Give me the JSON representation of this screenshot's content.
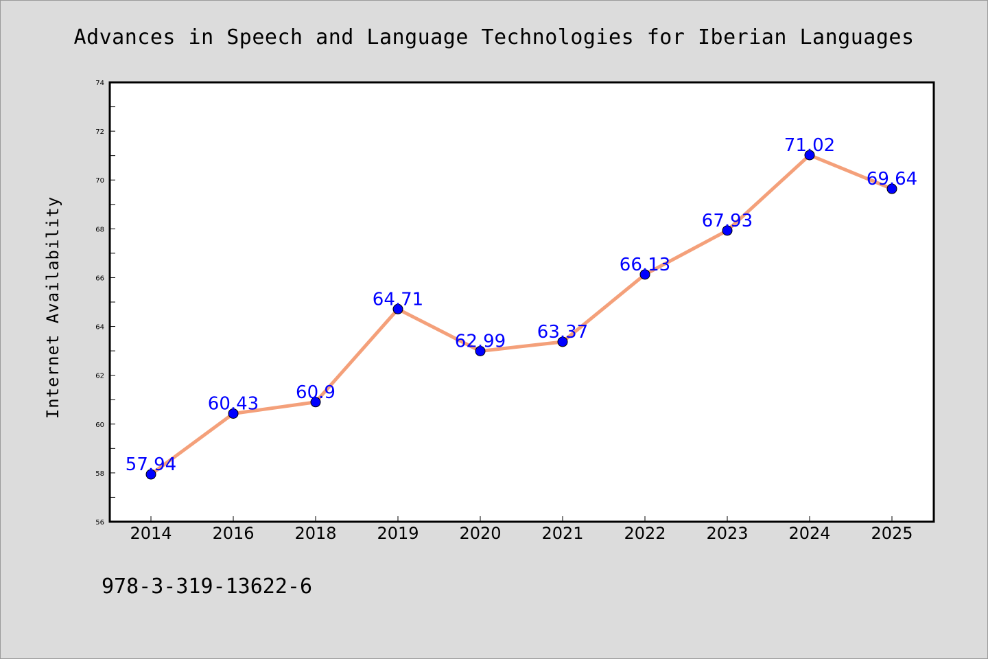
{
  "chart_data": {
    "type": "line",
    "title": "Advances in Speech and Language Technologies for Iberian Languages",
    "xlabel": "",
    "ylabel": "Internet Availability",
    "categories": [
      "2014",
      "2016",
      "2018",
      "2019",
      "2020",
      "2021",
      "2022",
      "2023",
      "2024",
      "2025"
    ],
    "series": [
      {
        "values": [
          57.94,
          60.43,
          60.9,
          64.71,
          62.99,
          63.37,
          66.13,
          67.93,
          71.02,
          69.64
        ],
        "labels": [
          "57.94",
          "60.43",
          "60.9",
          "64.71",
          "62.99",
          "63.37",
          "66.13",
          "67.93",
          "71.02",
          "69.64"
        ],
        "line_color": "#f4a07a",
        "marker_color": "#0000ff"
      }
    ],
    "ylim": [
      56,
      74
    ],
    "y_major_ticks": [
      "56",
      "58",
      "60",
      "62",
      "64",
      "66",
      "68",
      "70",
      "72",
      "74"
    ],
    "grid": false,
    "legend": "none"
  },
  "annotation": "978-3-319-13622-6",
  "colors": {
    "background": "#dcdcdc",
    "plot_background": "#ffffff",
    "data_label": "#0000ff"
  }
}
